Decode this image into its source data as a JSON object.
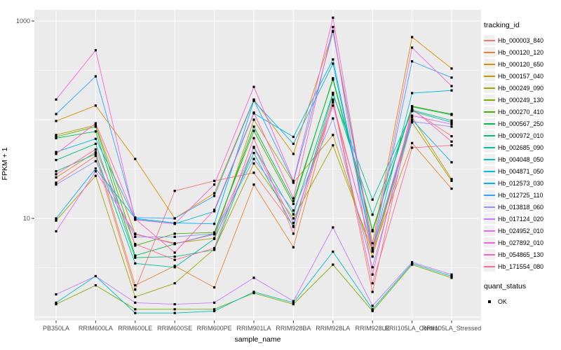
{
  "chart_data": {
    "type": "line",
    "title": "",
    "xlabel": "sample_name",
    "ylabel": "FPKM + 1",
    "y_scale": "log10",
    "ylim": [
      0.92,
      1300
    ],
    "grid": true,
    "legend_position": "right",
    "panel_bg": "#EBEBEB",
    "grid_color": "#FFFFFF",
    "point_color": "#000000",
    "axis_text_color": "#4d4d4d",
    "y_tick_labels": [
      {
        "value": 10,
        "label": "10"
      },
      {
        "value": 1000,
        "label": "1000"
      }
    ],
    "y_gridlines_major": [
      1,
      10,
      100,
      1000
    ],
    "y_gridlines_minor": [
      3.162,
      31.62,
      316.2
    ],
    "categories": [
      "PB350LA",
      "RRIM600LA",
      "RRIM600LE",
      "RRIM600SE",
      "RRIM600PE",
      "RRIM901LA",
      "RRIM928BA",
      "RRIM928LA",
      "RRIM928LE",
      "RRII105LA_Control",
      "RRII105LA_Stressed"
    ],
    "series": [
      {
        "name": "Hb_000003_840",
        "color": "#F8766D",
        "values": [
          23,
          43,
          1.9,
          19,
          24,
          29,
          8.4,
          158,
          1.8,
          126,
          68
        ]
      },
      {
        "name": "Hb_000120_120",
        "color": "#EA8331",
        "values": [
          26,
          47,
          2.1,
          3.3,
          2.0,
          22,
          5.1,
          150,
          4.6,
          58,
          20
        ]
      },
      {
        "name": "Hb_000120_650",
        "color": "#D89000",
        "values": [
          97,
          139,
          40,
          10,
          18,
          160,
          45,
          790,
          5.6,
          687,
          330
        ]
      },
      {
        "name": "Hb_000157_040",
        "color": "#C09B00",
        "values": [
          70,
          88,
          6.9,
          5.6,
          6.3,
          100,
          23,
          70,
          4.1,
          106,
          25
        ]
      },
      {
        "name": "Hb_000249_090",
        "color": "#A3A500",
        "values": [
          9.5,
          27,
          1.6,
          2.2,
          4.9,
          36,
          10,
          55,
          4.7,
          94,
          24
        ]
      },
      {
        "name": "Hb_000249_130",
        "color": "#7CAE00",
        "values": [
          1.35,
          2.1,
          1.2,
          1.2,
          1.2,
          1.75,
          1.35,
          3.4,
          1.15,
          3.4,
          2.5
        ]
      },
      {
        "name": "Hb_000270_410",
        "color": "#39B600",
        "values": [
          67,
          85,
          5.3,
          7.0,
          7.2,
          77,
          14,
          263,
          7.6,
          137,
          114
        ]
      },
      {
        "name": "Hb_000567_250",
        "color": "#00BB4E",
        "values": [
          65,
          76,
          4.2,
          5.5,
          7.0,
          85,
          15,
          255,
          7.4,
          135,
          112
        ]
      },
      {
        "name": "Hb_000972_010",
        "color": "#00BF7D",
        "values": [
          39,
          57,
          4.0,
          4.1,
          4.8,
          53,
          11,
          187,
          10.9,
          125,
          98
        ]
      },
      {
        "name": "Hb_002685_090",
        "color": "#00C1A3",
        "values": [
          30,
          45,
          3.5,
          3.2,
          6.2,
          46,
          8.2,
          180,
          15.5,
          122,
          94
        ]
      },
      {
        "name": "Hb_004048_050",
        "color": "#00BFC4",
        "values": [
          1.4,
          2.6,
          1.1,
          1.1,
          1.15,
          1.8,
          1.4,
          4.6,
          1.2,
          3.5,
          2.6
        ]
      },
      {
        "name": "Hb_004871_050",
        "color": "#00BAE0",
        "values": [
          47,
          64,
          9.8,
          8.8,
          11.8,
          116,
          67,
          408,
          4.9,
          186,
          198
        ]
      },
      {
        "name": "Hb_012573_030",
        "color": "#00B0F6",
        "values": [
          10,
          32,
          10,
          9.0,
          8.8,
          155,
          57,
          370,
          4.8,
          100,
          37
        ]
      },
      {
        "name": "Hb_012725_110",
        "color": "#35A2FF",
        "values": [
          114,
          275,
          10.2,
          10,
          16.9,
          158,
          23.4,
          780,
          5.0,
          390,
          267
        ]
      },
      {
        "name": "Hb_013818_060",
        "color": "#9590FF",
        "values": [
          22,
          38,
          6.5,
          6.5,
          7.0,
          40,
          12,
          103,
          3.2,
          96,
          85
        ]
      },
      {
        "name": "Hb_017124_020",
        "color": "#C77CFF",
        "values": [
          1.7,
          2.6,
          1.4,
          1.35,
          1.4,
          2.5,
          1.45,
          8.1,
          1.3,
          3.6,
          2.7
        ]
      },
      {
        "name": "Hb_024952_010",
        "color": "#E76BF3",
        "values": [
          7.4,
          30,
          7.0,
          5.5,
          6.9,
          52,
          9.0,
          139,
          4.85,
          110,
          90
        ]
      },
      {
        "name": "Hb_027892_010",
        "color": "#FA62DB",
        "values": [
          160,
          505,
          9.7,
          8.8,
          22,
          215,
          24,
          1080,
          4.9,
          537,
          219
        ]
      },
      {
        "name": "Hb_054865_130",
        "color": "#FF62BC",
        "values": [
          45,
          92,
          9.9,
          4.5,
          12.2,
          118,
          16,
          870,
          2.7,
          130,
          60
        ]
      },
      {
        "name": "Hb_171554_080",
        "color": "#FF6A98",
        "values": [
          28,
          50,
          5.5,
          3.8,
          5.0,
          65,
          7.0,
          160,
          2.2,
          52,
          55
        ]
      }
    ]
  },
  "legend": {
    "tracking_title": "tracking_id",
    "quant_title": "quant_status",
    "quant_items": [
      {
        "label": "OK"
      }
    ]
  }
}
